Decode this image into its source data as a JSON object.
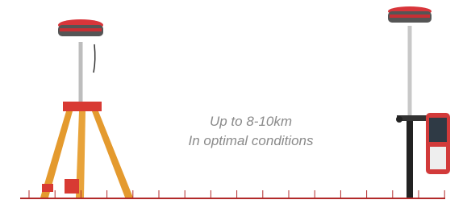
{
  "caption": {
    "line1": "Up to 8-10km",
    "line2": "In optimal conditions"
  }
}
